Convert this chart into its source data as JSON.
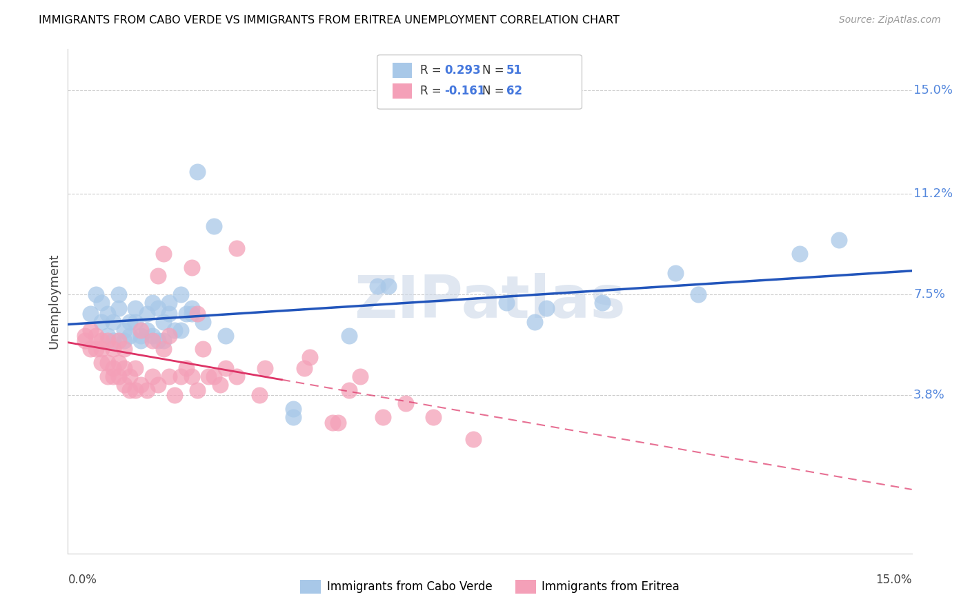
{
  "title": "IMMIGRANTS FROM CABO VERDE VS IMMIGRANTS FROM ERITREA UNEMPLOYMENT CORRELATION CHART",
  "source": "Source: ZipAtlas.com",
  "ylabel": "Unemployment",
  "y_ticks": [
    0.038,
    0.075,
    0.112,
    0.15
  ],
  "y_tick_labels": [
    "3.8%",
    "7.5%",
    "11.2%",
    "15.0%"
  ],
  "xlim": [
    0.0,
    0.15
  ],
  "ylim": [
    -0.02,
    0.165
  ],
  "cabo_verde_R": 0.293,
  "cabo_verde_N": 51,
  "eritrea_R": -0.161,
  "eritrea_N": 62,
  "cabo_verde_color": "#a8c8e8",
  "eritrea_color": "#f4a0b8",
  "cabo_verde_line_color": "#2255bb",
  "eritrea_line_color": "#dd3366",
  "watermark": "ZIPatlas",
  "cabo_verde_scatter": [
    [
      0.004,
      0.068
    ],
    [
      0.005,
      0.075
    ],
    [
      0.006,
      0.072
    ],
    [
      0.006,
      0.065
    ],
    [
      0.007,
      0.06
    ],
    [
      0.007,
      0.068
    ],
    [
      0.008,
      0.058
    ],
    [
      0.008,
      0.065
    ],
    [
      0.009,
      0.07
    ],
    [
      0.009,
      0.075
    ],
    [
      0.01,
      0.058
    ],
    [
      0.01,
      0.062
    ],
    [
      0.011,
      0.06
    ],
    [
      0.011,
      0.065
    ],
    [
      0.012,
      0.065
    ],
    [
      0.012,
      0.07
    ],
    [
      0.013,
      0.058
    ],
    [
      0.013,
      0.06
    ],
    [
      0.014,
      0.062
    ],
    [
      0.014,
      0.068
    ],
    [
      0.015,
      0.072
    ],
    [
      0.015,
      0.06
    ],
    [
      0.016,
      0.07
    ],
    [
      0.016,
      0.058
    ],
    [
      0.017,
      0.065
    ],
    [
      0.017,
      0.058
    ],
    [
      0.018,
      0.068
    ],
    [
      0.018,
      0.072
    ],
    [
      0.019,
      0.062
    ],
    [
      0.02,
      0.062
    ],
    [
      0.02,
      0.075
    ],
    [
      0.021,
      0.068
    ],
    [
      0.022,
      0.07
    ],
    [
      0.022,
      0.068
    ],
    [
      0.023,
      0.12
    ],
    [
      0.024,
      0.065
    ],
    [
      0.026,
      0.1
    ],
    [
      0.028,
      0.06
    ],
    [
      0.04,
      0.033
    ],
    [
      0.04,
      0.03
    ],
    [
      0.05,
      0.06
    ],
    [
      0.055,
      0.078
    ],
    [
      0.057,
      0.078
    ],
    [
      0.078,
      0.072
    ],
    [
      0.083,
      0.065
    ],
    [
      0.085,
      0.07
    ],
    [
      0.095,
      0.072
    ],
    [
      0.108,
      0.083
    ],
    [
      0.112,
      0.075
    ],
    [
      0.13,
      0.09
    ],
    [
      0.137,
      0.095
    ]
  ],
  "eritrea_scatter": [
    [
      0.003,
      0.06
    ],
    [
      0.003,
      0.058
    ],
    [
      0.004,
      0.062
    ],
    [
      0.004,
      0.055
    ],
    [
      0.005,
      0.055
    ],
    [
      0.005,
      0.06
    ],
    [
      0.006,
      0.05
    ],
    [
      0.006,
      0.055
    ],
    [
      0.006,
      0.058
    ],
    [
      0.007,
      0.045
    ],
    [
      0.007,
      0.05
    ],
    [
      0.007,
      0.058
    ],
    [
      0.008,
      0.045
    ],
    [
      0.008,
      0.048
    ],
    [
      0.008,
      0.055
    ],
    [
      0.009,
      0.045
    ],
    [
      0.009,
      0.05
    ],
    [
      0.009,
      0.058
    ],
    [
      0.01,
      0.042
    ],
    [
      0.01,
      0.048
    ],
    [
      0.01,
      0.055
    ],
    [
      0.011,
      0.04
    ],
    [
      0.011,
      0.045
    ],
    [
      0.012,
      0.04
    ],
    [
      0.012,
      0.048
    ],
    [
      0.013,
      0.042
    ],
    [
      0.013,
      0.062
    ],
    [
      0.014,
      0.04
    ],
    [
      0.015,
      0.045
    ],
    [
      0.015,
      0.058
    ],
    [
      0.016,
      0.042
    ],
    [
      0.016,
      0.082
    ],
    [
      0.017,
      0.09
    ],
    [
      0.017,
      0.055
    ],
    [
      0.018,
      0.045
    ],
    [
      0.018,
      0.06
    ],
    [
      0.019,
      0.038
    ],
    [
      0.02,
      0.045
    ],
    [
      0.021,
      0.048
    ],
    [
      0.022,
      0.045
    ],
    [
      0.022,
      0.085
    ],
    [
      0.023,
      0.04
    ],
    [
      0.023,
      0.068
    ],
    [
      0.024,
      0.055
    ],
    [
      0.025,
      0.045
    ],
    [
      0.026,
      0.045
    ],
    [
      0.027,
      0.042
    ],
    [
      0.028,
      0.048
    ],
    [
      0.03,
      0.092
    ],
    [
      0.03,
      0.045
    ],
    [
      0.034,
      0.038
    ],
    [
      0.035,
      0.048
    ],
    [
      0.042,
      0.048
    ],
    [
      0.043,
      0.052
    ],
    [
      0.047,
      0.028
    ],
    [
      0.048,
      0.028
    ],
    [
      0.05,
      0.04
    ],
    [
      0.052,
      0.045
    ],
    [
      0.056,
      0.03
    ],
    [
      0.06,
      0.035
    ],
    [
      0.065,
      0.03
    ],
    [
      0.072,
      0.022
    ]
  ]
}
